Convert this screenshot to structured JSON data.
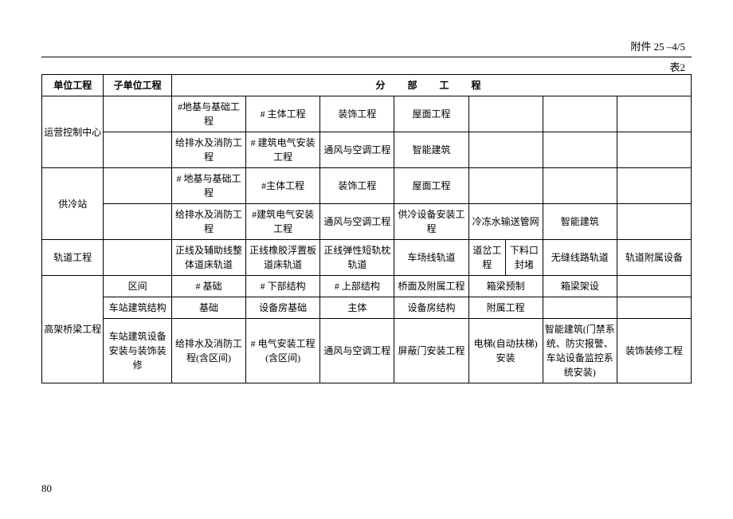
{
  "header": {
    "annex": "附件 25  –4/5",
    "table_label": "表2"
  },
  "table": {
    "columns": {
      "unit": "单位工程",
      "sub_unit": "子单位工程",
      "division": "分　部　工　程"
    },
    "rows": [
      {
        "unit": "运营控制中心",
        "unit_rowspan": 2,
        "sub": "",
        "cells": [
          "#地基与基础工程",
          "# 主体工程",
          "装饰工程",
          "屋面工程",
          "",
          "",
          ""
        ]
      },
      {
        "sub": "",
        "cells": [
          "给排水及消防工程",
          "# 建筑电气安装工程",
          "通风与空调工程",
          "智能建筑",
          "",
          "",
          ""
        ]
      },
      {
        "unit": "供冷站",
        "unit_rowspan": 2,
        "sub": "",
        "cells": [
          "# 地基与基础工程",
          "#主体工程",
          "装饰工程",
          "屋面工程",
          "",
          "",
          ""
        ]
      },
      {
        "sub": "",
        "cells": [
          "给排水及消防工程",
          "#建筑电气安装工程",
          "通风与空调工程",
          "供冷设备安装工程",
          "冷冻水输送管网",
          "智能建筑",
          ""
        ]
      },
      {
        "unit": "轨道工程",
        "unit_rowspan": 1,
        "sub": "",
        "cells": [
          "正线及辅助线整体道床轨道",
          "正线橡胶浮置板道床轨道",
          "正线弹性短轨枕轨道",
          "车场线轨道",
          "",
          "无缝线路轨道",
          "轨道附属设备"
        ],
        "split_cell": {
          "index": 4,
          "left": "道岔工程",
          "right": "下料口封堵"
        }
      },
      {
        "unit": "高架桥梁工程",
        "unit_rowspan": 3,
        "sub": "区间",
        "cells": [
          "# 基础",
          "# 下部结构",
          "# 上部结构",
          "桥面及附属工程",
          "箱梁预制",
          "箱梁架设",
          ""
        ]
      },
      {
        "sub": "车站建筑结构",
        "cells": [
          "基础",
          "设备房基础",
          "主体",
          "设备房结构",
          "附属工程",
          "",
          ""
        ]
      },
      {
        "sub": "车站建筑设备安装与装饰装修",
        "cells": [
          "给排水及消防工程(含区间)",
          "# 电气安装工程(含区间)",
          "通风与空调工程",
          "屏蔽门安装工程",
          "电梯(自动扶梯) 安装",
          "智能建筑(门禁系统、防灾报警、车站设备监控系统安装)",
          "装饰装修工程"
        ]
      }
    ]
  },
  "page_number": "80"
}
